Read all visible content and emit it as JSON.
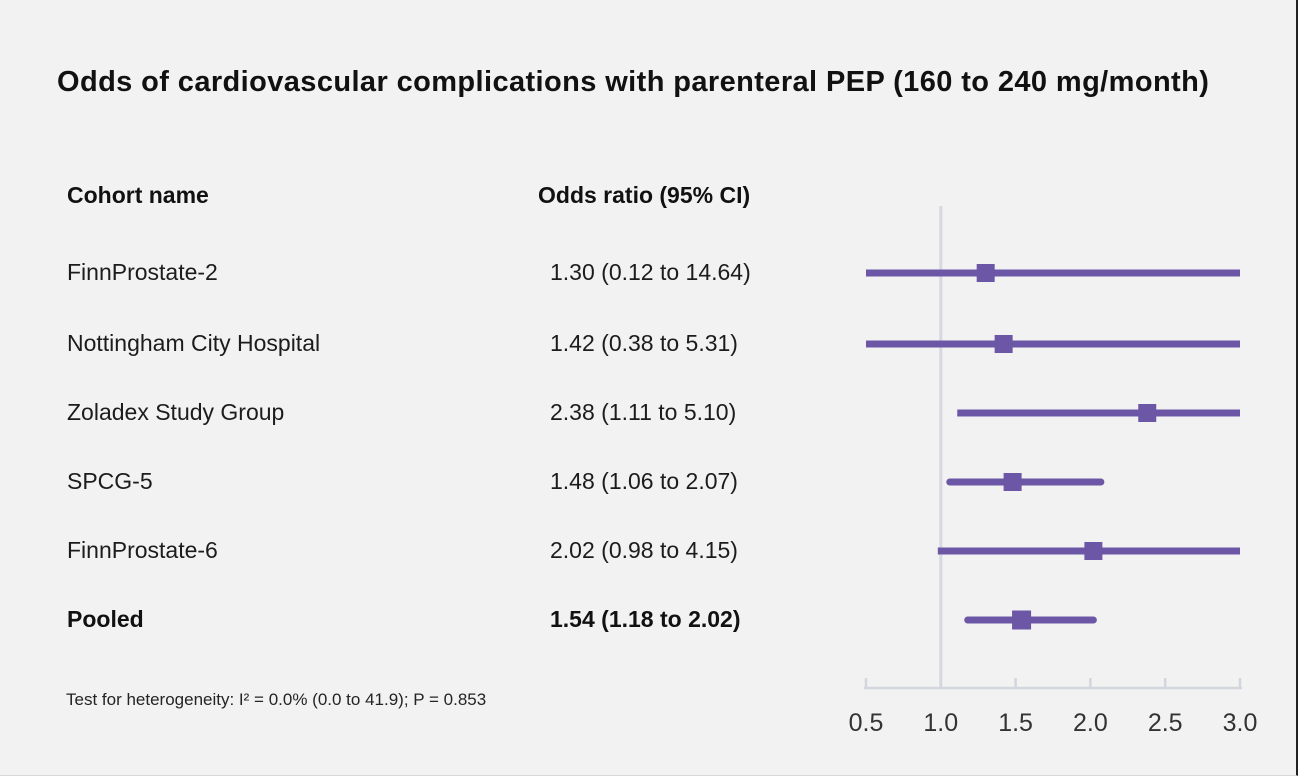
{
  "chart_data": {
    "type": "forest",
    "title": "Odds of cardiovascular complications with parenteral PEP (160 to 240 mg/month)",
    "columns": {
      "cohort": "Cohort name",
      "odds_ratio": "Odds ratio (95% CI)"
    },
    "rows": [
      {
        "label": "FinnProstate-2",
        "value_text": "1.30 (0.12 to 14.64)",
        "or": 1.3,
        "lo": 0.12,
        "hi": 14.64,
        "pooled": false
      },
      {
        "label": "Nottingham City Hospital",
        "value_text": "1.42 (0.38 to 5.31)",
        "or": 1.42,
        "lo": 0.38,
        "hi": 5.31,
        "pooled": false
      },
      {
        "label": "Zoladex Study Group",
        "value_text": "2.38 (1.11 to 5.10)",
        "or": 2.38,
        "lo": 1.11,
        "hi": 5.1,
        "pooled": false
      },
      {
        "label": "SPCG-5",
        "value_text": "1.48 (1.06 to 2.07)",
        "or": 1.48,
        "lo": 1.06,
        "hi": 2.07,
        "pooled": false
      },
      {
        "label": "FinnProstate-6",
        "value_text": "2.02 (0.98 to 4.15)",
        "or": 2.02,
        "lo": 0.98,
        "hi": 4.15,
        "pooled": false
      },
      {
        "label": "Pooled",
        "value_text": "1.54 (1.18 to 2.02)",
        "or": 1.54,
        "lo": 1.18,
        "hi": 2.02,
        "pooled": true
      }
    ],
    "footnote": "Test for heterogeneity: I² = 0.0% (0.0 to 41.9); P = 0.853",
    "axis": {
      "xmin": 0.5,
      "xmax": 3.0,
      "ticks": [
        0.5,
        1.0,
        1.5,
        2.0,
        2.5,
        3.0
      ],
      "tick_labels": [
        "0.5",
        "1.0",
        "1.5",
        "2.0",
        "2.5",
        "3.0"
      ],
      "ref_value": 1.0
    },
    "legend": null,
    "colors": {
      "marker": "#6b57a5",
      "ci_line": "#6b57a5",
      "ref_line": "#d7d9e2",
      "axis_line": "#d3d6dd",
      "tick_label": "#333333",
      "background": "#f2f2f2"
    }
  }
}
